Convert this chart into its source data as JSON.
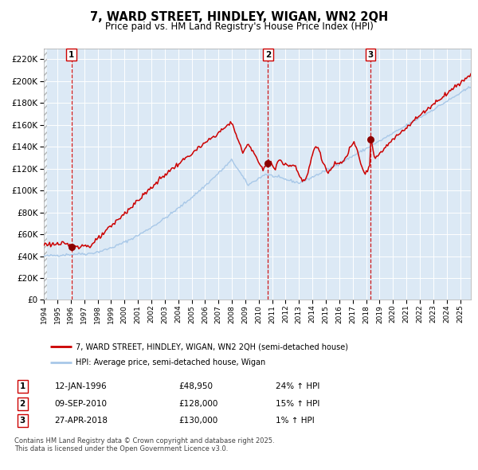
{
  "title": "7, WARD STREET, HINDLEY, WIGAN, WN2 2QH",
  "subtitle": "Price paid vs. HM Land Registry's House Price Index (HPI)",
  "hpi_label": "HPI: Average price, semi-detached house, Wigan",
  "price_label": "7, WARD STREET, HINDLEY, WIGAN, WN2 2QH (semi-detached house)",
  "background_color": "#ffffff",
  "plot_bg_color": "#dce9f5",
  "hpi_color": "#a8c8e8",
  "price_color": "#cc0000",
  "sale_marker_color": "#8b0000",
  "vline_color": "#cc0000",
  "grid_color": "#ffffff",
  "footer_text": "Contains HM Land Registry data © Crown copyright and database right 2025.\nThis data is licensed under the Open Government Licence v3.0.",
  "sales": [
    {
      "label": "1",
      "date_str": "12-JAN-1996",
      "price": 48950,
      "pct": "24%",
      "x_year": 1996.04
    },
    {
      "label": "2",
      "date_str": "09-SEP-2010",
      "price": 128000,
      "pct": "15%",
      "x_year": 2010.69
    },
    {
      "label": "3",
      "date_str": "27-APR-2018",
      "price": 130000,
      "pct": "1%",
      "x_year": 2018.32
    }
  ],
  "ylim": [
    0,
    230000
  ],
  "yticks": [
    0,
    20000,
    40000,
    60000,
    80000,
    100000,
    120000,
    140000,
    160000,
    180000,
    200000,
    220000
  ],
  "xlim_start": 1994.0,
  "xlim_end": 2025.8,
  "fig_width": 6.0,
  "fig_height": 5.9
}
